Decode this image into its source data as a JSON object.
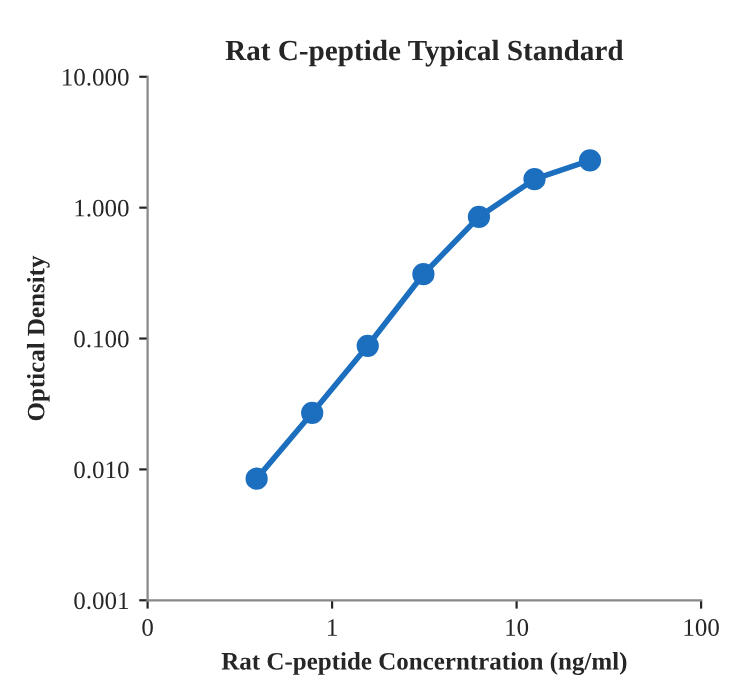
{
  "chart_data": {
    "type": "line",
    "title": "Rat C-peptide Typical Standard",
    "xlabel": "Rat C-peptide Concerntration (ng/ml)",
    "ylabel": "Optical Density",
    "x": [
      0.39,
      0.78,
      1.56,
      3.125,
      6.25,
      12.5,
      25
    ],
    "series": [
      {
        "color": "#1c6fbe",
        "values": [
          0.0085,
          0.027,
          0.088,
          0.31,
          0.85,
          1.65,
          2.3
        ]
      }
    ],
    "log": "xy",
    "xlim": [
      0.1,
      100
    ],
    "ylim": [
      0.001,
      10
    ],
    "xticks": [
      {
        "value": 0.1,
        "label": "0"
      },
      1,
      10,
      100
    ],
    "yticks": [
      {
        "value": 0.001,
        "label": "0.001"
      },
      {
        "value": 0.01,
        "label": "0.010"
      },
      {
        "value": 0.1,
        "label": "0.100"
      },
      {
        "value": 1,
        "label": "1.000"
      },
      {
        "value": 10,
        "label": "10.000"
      }
    ],
    "marker": "circle",
    "line_style": "solid",
    "grid": false,
    "legend": false
  }
}
